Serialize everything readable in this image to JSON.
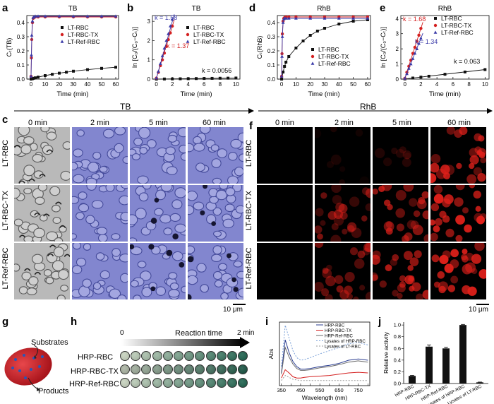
{
  "panels": {
    "a": "a",
    "b": "b",
    "c": "c",
    "d": "d",
    "e": "e",
    "f": "f",
    "g": "g",
    "h": "h",
    "i": "i",
    "j": "j"
  },
  "panel_a": {
    "title": "TB",
    "ylabel": "Cₜ(TB)",
    "xlabel": "Time (min)",
    "legend": [
      "LT-RBC",
      "LT-RBC-TX",
      "LT-Ref-RBC"
    ],
    "yticks": [
      "0.0",
      "0.1",
      "0.2",
      "0.3",
      "0.4"
    ],
    "xticks": [
      "0",
      "10",
      "20",
      "30",
      "40",
      "50",
      "60"
    ]
  },
  "panel_b": {
    "title": "TB",
    "ylabel": "ln [C₀/(C₀−Cₜ)]",
    "xlabel": "Time (min)",
    "legend": [
      "LT-RBC",
      "LT-RBC-TX",
      "LT-Ref-RBC"
    ],
    "k_blue": "k = 1.58",
    "k_red": "k = 1.37",
    "k_black": "k = 0.0056",
    "yticks": [
      "0",
      "1",
      "2",
      "3"
    ],
    "xticks": [
      "0",
      "2",
      "4",
      "6",
      "8",
      "10"
    ]
  },
  "panel_d": {
    "title": "RhB",
    "ylabel": "Cₜ(RhB)",
    "xlabel": "Time (min)",
    "legend": [
      "LT-RBC",
      "LT-RBC-TX",
      "LT-Ref-RBC"
    ],
    "yticks": [
      "0.0",
      "0.1",
      "0.2",
      "0.3",
      "0.4"
    ],
    "xticks": [
      "0",
      "10",
      "20",
      "30",
      "40",
      "50",
      "60"
    ]
  },
  "panel_e": {
    "title": "RhB",
    "ylabel": "ln [C₀/(C₀−Cₜ)]",
    "xlabel": "Time (min)",
    "legend": [
      "LT-RBC",
      "LT-RBC-TX",
      "LT-Ref-RBC"
    ],
    "k_red": "k = 1.68",
    "k_blue": "k = 1.34",
    "k_black": "k = 0.063",
    "yticks": [
      "0",
      "1",
      "2",
      "3",
      "4"
    ],
    "xticks": [
      "0",
      "2",
      "4",
      "6",
      "8",
      "10"
    ]
  },
  "tb_arrow_label": "TB",
  "rhb_arrow_label": "RhB",
  "micro_times": [
    "0 min",
    "2 min",
    "5 min",
    "60 min"
  ],
  "row_labels": [
    "LT-RBC",
    "LT-RBC-TX",
    "LT-Ref-RBC"
  ],
  "scale_bar": "10 μm",
  "g_labels": {
    "substrates": "Substrates",
    "products": "Products"
  },
  "h": {
    "start": "0",
    "title": "Reaction time",
    "end": "2 min",
    "rows": [
      "HRP-RBC",
      "HRP-RBC-TX",
      "HRP-Ref-RBC"
    ]
  },
  "panel_i": {
    "ylabel": "Abs",
    "xlabel": "Wavelength (nm)",
    "legend": [
      "HRP-RBC",
      "HRP-RBC-TX",
      "HRP-Ref-RBC",
      "Lysates of HRP-RBC",
      "Lysates of LT-RBC"
    ],
    "xticks": [
      "350",
      "400",
      "450",
      "500",
      "550",
      "600",
      "650",
      "700",
      "750",
      "800"
    ]
  },
  "panel_j": {
    "ylabel": "Relative activity",
    "categories": [
      "HRP-RBC",
      "HRP-RBC-TX",
      "HRP-Ref-RBC",
      "Lysates of HRP-RBC",
      "Lysates of LT-RBC"
    ],
    "yticks": [
      "0.0",
      "0.2",
      "0.4",
      "0.6",
      "0.8",
      "1.0"
    ]
  },
  "colors": {
    "black": "#111111",
    "red": "#d42020",
    "blue": "#3a3aa8",
    "micro_blue": "#6f73c9",
    "fluor_red": "#e0201a"
  },
  "chart_data": [
    {
      "type": "scatter",
      "id": "a",
      "title": "TB",
      "xlabel": "Time (min)",
      "ylabel": "Ct(TB)",
      "xlim": [
        -3,
        62
      ],
      "ylim": [
        0,
        0.45
      ],
      "series": [
        {
          "name": "LT-RBC",
          "x": [
            0,
            1,
            2,
            3,
            5,
            10,
            15,
            20,
            25,
            30,
            40,
            50,
            60
          ],
          "y": [
            0.0,
            0.003,
            0.006,
            0.009,
            0.014,
            0.025,
            0.034,
            0.042,
            0.049,
            0.056,
            0.067,
            0.076,
            0.084
          ]
        },
        {
          "name": "LT-RBC-TX",
          "x": [
            0,
            0.25,
            0.5,
            1,
            1.5,
            2,
            3,
            5,
            10,
            20,
            30,
            40,
            50,
            60
          ],
          "y": [
            0.02,
            0.15,
            0.28,
            0.4,
            0.43,
            0.435,
            0.44,
            0.44,
            0.44,
            0.44,
            0.44,
            0.44,
            0.44,
            0.44
          ]
        },
        {
          "name": "LT-Ref-RBC",
          "x": [
            0,
            0.25,
            0.5,
            1,
            1.5,
            2,
            3,
            5,
            10,
            20,
            30,
            40,
            50,
            60
          ],
          "y": [
            0.02,
            0.17,
            0.31,
            0.41,
            0.435,
            0.44,
            0.445,
            0.445,
            0.445,
            0.445,
            0.445,
            0.445,
            0.445,
            0.445
          ]
        }
      ]
    },
    {
      "type": "scatter",
      "id": "b",
      "title": "TB",
      "xlabel": "Time (min)",
      "ylabel": "ln [C0/(C0-Ct)]",
      "xlim": [
        -0.5,
        10.5
      ],
      "ylim": [
        0,
        3.3
      ],
      "series": [
        {
          "name": "LT-RBC",
          "x": [
            0,
            1,
            2,
            3,
            4,
            5,
            6,
            7,
            8,
            9,
            10
          ],
          "y": [
            0,
            0.006,
            0.011,
            0.017,
            0.022,
            0.028,
            0.034,
            0.039,
            0.045,
            0.05,
            0.056
          ]
        },
        {
          "name": "LT-RBC-TX",
          "x": [
            0,
            0.25,
            0.5,
            0.75,
            1,
            1.25,
            1.5,
            1.75,
            2
          ],
          "y": [
            0.05,
            0.35,
            0.7,
            1.0,
            1.35,
            1.7,
            2.05,
            2.4,
            2.75
          ]
        },
        {
          "name": "LT-Ref-RBC",
          "x": [
            0,
            0.25,
            0.5,
            0.75,
            1,
            1.25,
            1.5,
            1.75,
            2
          ],
          "y": [
            0.05,
            0.4,
            0.8,
            1.2,
            1.6,
            2.0,
            2.35,
            2.75,
            3.1
          ]
        }
      ]
    },
    {
      "type": "scatter",
      "id": "d",
      "title": "RhB",
      "xlabel": "Time (min)",
      "ylabel": "Ct(RhB)",
      "xlim": [
        -3,
        62
      ],
      "ylim": [
        0,
        0.45
      ],
      "series": [
        {
          "name": "LT-RBC",
          "x": [
            0,
            1,
            2,
            3,
            5,
            10,
            15,
            20,
            25,
            30,
            40,
            50,
            60
          ],
          "y": [
            0.0,
            0.05,
            0.09,
            0.12,
            0.16,
            0.22,
            0.27,
            0.31,
            0.34,
            0.36,
            0.39,
            0.41,
            0.42
          ]
        },
        {
          "name": "LT-RBC-TX",
          "x": [
            0,
            0.25,
            0.5,
            1,
            1.5,
            2,
            3,
            5,
            10,
            20,
            30,
            40,
            50,
            60
          ],
          "y": [
            0.02,
            0.18,
            0.32,
            0.41,
            0.43,
            0.435,
            0.44,
            0.44,
            0.44,
            0.44,
            0.44,
            0.44,
            0.44,
            0.44
          ]
        },
        {
          "name": "LT-Ref-RBC",
          "x": [
            0,
            0.25,
            0.5,
            1,
            1.5,
            2,
            3,
            5,
            10,
            20,
            30,
            40,
            50,
            60
          ],
          "y": [
            0.02,
            0.16,
            0.3,
            0.4,
            0.425,
            0.43,
            0.43,
            0.43,
            0.43,
            0.43,
            0.43,
            0.43,
            0.43,
            0.43
          ]
        }
      ]
    },
    {
      "type": "scatter",
      "id": "e",
      "title": "RhB",
      "xlabel": "Time (min)",
      "ylabel": "ln [C0/(C0-Ct)]",
      "xlim": [
        -0.5,
        10.5
      ],
      "ylim": [
        0,
        4.2
      ],
      "series": [
        {
          "name": "LT-RBC",
          "x": [
            0,
            1,
            2,
            3,
            5,
            7.5,
            10
          ],
          "y": [
            0.01,
            0.07,
            0.13,
            0.19,
            0.32,
            0.47,
            0.63
          ]
        },
        {
          "name": "LT-RBC-TX",
          "x": [
            0,
            0.25,
            0.5,
            0.75,
            1,
            1.25,
            1.5,
            1.75,
            2
          ],
          "y": [
            0.05,
            0.45,
            0.85,
            1.25,
            1.7,
            2.1,
            2.5,
            2.9,
            3.35
          ]
        },
        {
          "name": "LT-Ref-RBC",
          "x": [
            0,
            0.25,
            0.5,
            0.75,
            1,
            1.25,
            1.5,
            1.75,
            2
          ],
          "y": [
            0.05,
            0.35,
            0.7,
            1.0,
            1.35,
            1.7,
            2.0,
            2.35,
            2.7
          ]
        }
      ]
    },
    {
      "type": "line",
      "id": "i",
      "xlabel": "Wavelength (nm)",
      "ylabel": "Abs",
      "xlim": [
        340,
        810
      ],
      "x": [
        350,
        370,
        390,
        410,
        430,
        450,
        470,
        500,
        550,
        600,
        650,
        700,
        750,
        800
      ],
      "series": [
        {
          "name": "HRP-RBC",
          "y": [
            0.2,
            0.72,
            0.52,
            0.38,
            0.3,
            0.26,
            0.26,
            0.27,
            0.3,
            0.32,
            0.35,
            0.4,
            0.42,
            0.4
          ]
        },
        {
          "name": "HRP-RBC-TX",
          "y": [
            0.12,
            0.25,
            0.2,
            0.14,
            0.12,
            0.12,
            0.13,
            0.14,
            0.15,
            0.16,
            0.18,
            0.2,
            0.21,
            0.2
          ]
        },
        {
          "name": "HRP-Ref-RBC",
          "y": [
            0.18,
            0.6,
            0.45,
            0.34,
            0.27,
            0.24,
            0.24,
            0.25,
            0.28,
            0.3,
            0.33,
            0.37,
            0.39,
            0.37
          ]
        },
        {
          "name": "Lysates of HRP-RBC",
          "y": [
            0.3,
            0.95,
            0.75,
            0.55,
            0.44,
            0.4,
            0.41,
            0.44,
            0.5,
            0.55,
            0.6,
            0.66,
            0.68,
            0.64
          ]
        },
        {
          "name": "Lysates of LT-RBC",
          "y": [
            0.08,
            0.16,
            0.13,
            0.1,
            0.09,
            0.08,
            0.08,
            0.08,
            0.08,
            0.08,
            0.08,
            0.08,
            0.08,
            0.08
          ]
        }
      ]
    },
    {
      "type": "bar",
      "id": "j",
      "ylabel": "Relative activity",
      "ylim": [
        0,
        1.05
      ],
      "categories": [
        "HRP-RBC",
        "HRP-RBC-TX",
        "HRP-Ref-RBC",
        "Lysates of HRP-RBC",
        "Lysates of LT-RBC"
      ],
      "values": [
        0.13,
        0.63,
        0.6,
        1.0,
        0.02
      ],
      "errors": [
        0.01,
        0.03,
        0.02,
        0.01,
        0.005
      ]
    }
  ]
}
